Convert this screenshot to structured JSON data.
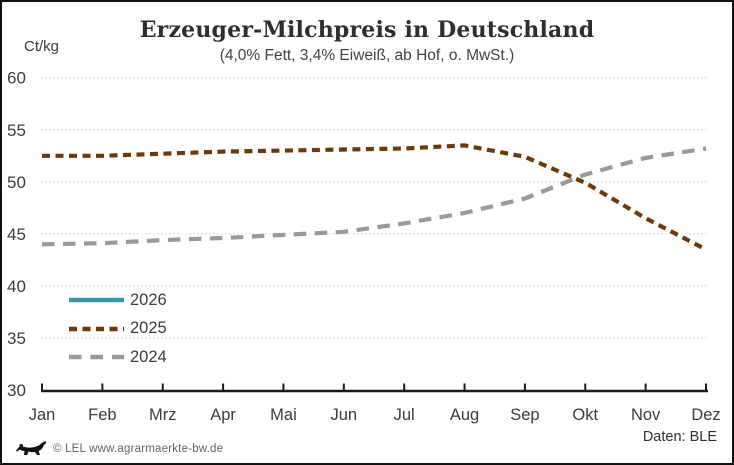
{
  "chart_data": {
    "type": "line",
    "title": "Erzeuger-Milchpreis in Deutschland",
    "subtitle": "(4,0% Fett, 3,4% Eiweiß, ab Hof, o. MwSt.)",
    "unit_label": "Ct/kg",
    "x_categories": [
      "Jan",
      "Feb",
      "Mrz",
      "Apr",
      "Mai",
      "Jun",
      "Jul",
      "Aug",
      "Sep",
      "Okt",
      "Nov",
      "Dez"
    ],
    "ylim": [
      30,
      60
    ],
    "yticks": [
      30,
      35,
      40,
      45,
      50,
      55,
      60
    ],
    "grid": "horizontal-dotted",
    "legend_position": "inside-bottom-left",
    "series": [
      {
        "name": "2026",
        "color": "#3598ab",
        "style": "solid",
        "values": []
      },
      {
        "name": "2025",
        "color": "#6e390a",
        "style": "dashed-short",
        "values": [
          52.5,
          52.5,
          52.7,
          52.9,
          53.0,
          53.1,
          53.2,
          53.5,
          52.4,
          49.9,
          46.5,
          43.5
        ]
      },
      {
        "name": "2024",
        "color": "#999999",
        "style": "dashed-long",
        "values": [
          44.0,
          44.1,
          44.4,
          44.6,
          44.9,
          45.2,
          46.0,
          47.0,
          48.4,
          50.7,
          52.3,
          53.2
        ]
      }
    ],
    "colors": {
      "grid": "#cccccc",
      "axis": "#1a1a1a",
      "tick_label": "#3c3c3c"
    }
  },
  "footer": {
    "copyright": "© LEL www.agrarmaerkte-bw.de",
    "source": "Daten: BLE",
    "logo": "baden-wuerttemberg-lion"
  }
}
